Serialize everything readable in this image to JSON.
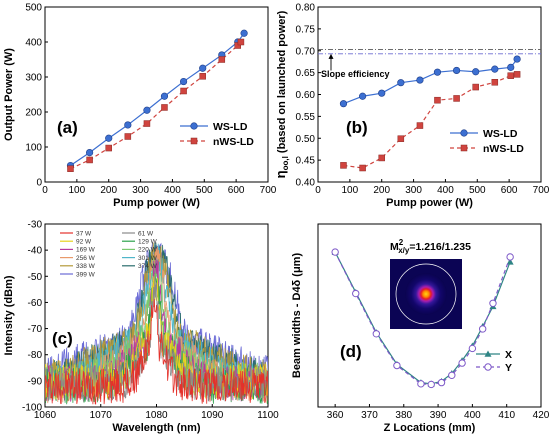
{
  "chart_data": [
    {
      "id": "a",
      "type": "line",
      "panel_label": "(a)",
      "xlabel": "Pump power (W)",
      "ylabel": "Output Power (W)",
      "xlim": [
        0,
        700
      ],
      "ylim": [
        0,
        500
      ],
      "xticks": [
        0,
        100,
        200,
        300,
        400,
        500,
        600,
        700
      ],
      "yticks": [
        0,
        100,
        200,
        300,
        400,
        500
      ],
      "legend_position": "bottom-right",
      "series": [
        {
          "name": "WS-LD",
          "color": "#3c6fd1",
          "marker": "circle",
          "dash": "",
          "x": [
            80,
            140,
            200,
            260,
            320,
            375,
            435,
            495,
            555,
            605,
            625
          ],
          "y": [
            47,
            84,
            125,
            163,
            205,
            245,
            287,
            325,
            363,
            400,
            425
          ]
        },
        {
          "name": "nWS-LD",
          "color": "#d0443f",
          "marker": "square",
          "dash": "4,3",
          "x": [
            80,
            140,
            200,
            260,
            320,
            375,
            435,
            495,
            555,
            605,
            615
          ],
          "y": [
            38,
            63,
            97,
            130,
            167,
            213,
            260,
            302,
            350,
            390,
            400
          ]
        }
      ]
    },
    {
      "id": "b",
      "type": "line",
      "panel_label": "(b)",
      "xlabel": "Pump power (W)",
      "ylabel": "η_oo,l (based on launched power)",
      "ylabel_main": "η",
      "ylabel_sub": "oo,l",
      "ylabel_rest": " (based on launched power)",
      "xlim": [
        0,
        700
      ],
      "ylim": [
        0.4,
        0.8
      ],
      "xticks": [
        0,
        100,
        200,
        300,
        400,
        500,
        600,
        700
      ],
      "yticks": [
        0.4,
        0.45,
        0.5,
        0.55,
        0.6,
        0.65,
        0.7,
        0.75,
        0.8
      ],
      "ytick_labels": [
        "0.40",
        "0.45",
        "0.50",
        "0.55",
        "0.60",
        "0.65",
        "0.70",
        "0.75",
        "0.80"
      ],
      "legend_position": "bottom-right",
      "annotation": "Slope efficiency",
      "ref_lines": [
        0.703,
        0.693
      ],
      "series": [
        {
          "name": "WS-LD",
          "color": "#3c6fd1",
          "marker": "circle",
          "dash": "",
          "x": [
            80,
            140,
            200,
            260,
            320,
            375,
            435,
            495,
            555,
            605,
            625
          ],
          "y": [
            0.579,
            0.596,
            0.603,
            0.627,
            0.633,
            0.651,
            0.655,
            0.652,
            0.658,
            0.662,
            0.681
          ]
        },
        {
          "name": "nWS-LD",
          "color": "#d0443f",
          "marker": "square",
          "dash": "4,3",
          "x": [
            80,
            140,
            200,
            260,
            320,
            375,
            435,
            495,
            555,
            605,
            625
          ],
          "y": [
            0.438,
            0.432,
            0.455,
            0.499,
            0.529,
            0.587,
            0.591,
            0.617,
            0.628,
            0.643,
            0.646
          ]
        }
      ]
    },
    {
      "id": "c",
      "type": "line",
      "panel_label": "(c)",
      "xlabel": "Wavelength (nm)",
      "ylabel": "Intensity (dBm)",
      "xlim": [
        1060,
        1100
      ],
      "ylim": [
        -100,
        -30
      ],
      "xticks": [
        1060,
        1070,
        1080,
        1090,
        1100
      ],
      "yticks": [
        -100,
        -90,
        -80,
        -70,
        -60,
        -50,
        -40,
        -30
      ],
      "legend_position": "top-left",
      "series": [
        {
          "name": "37 W",
          "color": "#e4312b",
          "peak_nm": 1079.6,
          "width_nm": 0.6,
          "peak_dbm": -57
        },
        {
          "name": "61 W",
          "color": "#8a8a8a",
          "peak_nm": 1079.7,
          "width_nm": 0.7,
          "peak_dbm": -55
        },
        {
          "name": "92 W",
          "color": "#e6d21e",
          "peak_nm": 1079.8,
          "width_nm": 0.9,
          "peak_dbm": -53
        },
        {
          "name": "129 W",
          "color": "#2ca24b",
          "peak_nm": 1079.8,
          "width_nm": 1.1,
          "peak_dbm": -51
        },
        {
          "name": "169 W",
          "color": "#b53a9e",
          "peak_nm": 1079.9,
          "width_nm": 1.3,
          "peak_dbm": -49
        },
        {
          "name": "220 W",
          "color": "#7bc96f",
          "peak_nm": 1079.9,
          "width_nm": 1.6,
          "peak_dbm": -47
        },
        {
          "name": "256 W",
          "color": "#e99a6b",
          "peak_nm": 1080.0,
          "width_nm": 1.9,
          "peak_dbm": -45
        },
        {
          "name": "301 W",
          "color": "#4fb6c9",
          "peak_nm": 1080.0,
          "width_nm": 2.3,
          "peak_dbm": -44
        },
        {
          "name": "338 W",
          "color": "#b49a3a",
          "peak_nm": 1080.0,
          "width_nm": 2.7,
          "peak_dbm": -43
        },
        {
          "name": "374 W",
          "color": "#2a6d6d",
          "peak_nm": 1080.1,
          "width_nm": 3.2,
          "peak_dbm": -42
        },
        {
          "name": "399 W",
          "color": "#6b6bd6",
          "peak_nm": 1080.1,
          "width_nm": 3.6,
          "peak_dbm": -41
        }
      ]
    },
    {
      "id": "d",
      "type": "line",
      "panel_label": "(d)",
      "xlabel": "Z Locations (mm)",
      "ylabel": "Beam widths - D4δ (μm)",
      "xlim": [
        355,
        420
      ],
      "ylim": [
        100,
        400
      ],
      "xticks": [
        360,
        370,
        380,
        390,
        400,
        410,
        420
      ],
      "legend_position": "bottom-right",
      "annotation_main": "M",
      "annotation_sup": "2",
      "annotation_sub": "x/y",
      "annotation_rest": "=1.216/1.235",
      "series": [
        {
          "name": "X",
          "color": "#2f8585",
          "marker": "triangle",
          "dash": "",
          "x": [
            360,
            366,
            372,
            378,
            385,
            388,
            391,
            394,
            397,
            400,
            403,
            406,
            411
          ],
          "y": [
            354,
            288,
            222,
            170,
            140,
            138,
            142,
            155,
            176,
            200,
            232,
            265,
            338
          ]
        },
        {
          "name": "Y",
          "color": "#7d58c8",
          "marker": "circle-open",
          "dash": "4,3",
          "x": [
            360,
            366,
            372,
            378,
            385,
            388,
            391,
            394,
            397,
            400,
            403,
            406,
            411
          ],
          "y": [
            354,
            286,
            220,
            168,
            138,
            137,
            140,
            152,
            172,
            196,
            228,
            270,
            346
          ]
        }
      ]
    }
  ]
}
